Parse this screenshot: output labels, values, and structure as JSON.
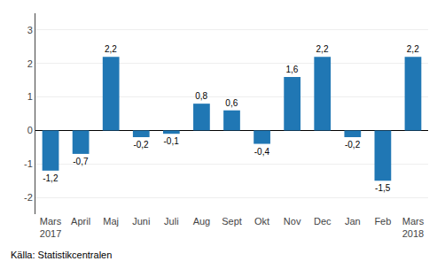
{
  "chart_data": {
    "type": "bar",
    "categories": [
      "Mars\n2017",
      "April",
      "Maj",
      "Juni",
      "Juli",
      "Aug",
      "Sept",
      "Okt",
      "Nov",
      "Dec",
      "Jan",
      "Feb",
      "Mars\n2018"
    ],
    "values": [
      -1.2,
      -0.7,
      2.2,
      -0.2,
      -0.1,
      0.8,
      0.6,
      -0.4,
      1.6,
      2.2,
      -0.2,
      -1.5,
      2.2
    ],
    "value_labels": [
      "-1,2",
      "-0,7",
      "2,2",
      "-0,2",
      "-0,1",
      "0,8",
      "0,6",
      "-0,4",
      "1,6",
      "2,2",
      "-0,2",
      "-1,5",
      "2,2"
    ],
    "data_labels": true,
    "color": "#2077b4",
    "ylim": [
      -2.5,
      3.5
    ],
    "yticks": [
      -2,
      -1,
      0,
      1,
      2,
      3
    ],
    "grid": true,
    "annotations": [
      "Källa: Statistikcentralen"
    ]
  }
}
